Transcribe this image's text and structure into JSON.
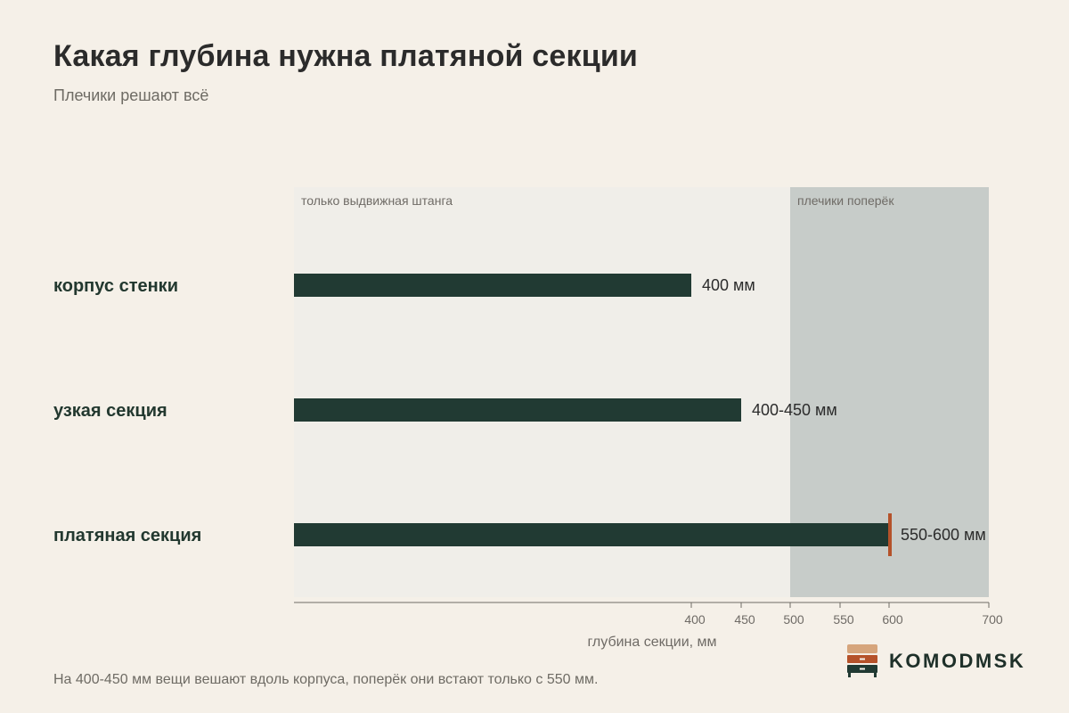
{
  "title": "Какая глубина нужна платяной секции",
  "subtitle": "Плечики решают всё",
  "footnote": "На 400-450 мм вещи вешают вдоль корпуса, поперёк они встают только с 550 мм.",
  "brand": "KOMODMSK",
  "colors": {
    "background": "#f5f0e8",
    "plot_bg": "#f0eee9",
    "zone_hanger": "#c7ccc9",
    "bar": "#213a33",
    "marker": "#b5522a",
    "axis": "#6f6b66"
  },
  "chart_data": {
    "type": "bar",
    "orientation": "horizontal",
    "categories": [
      "корпус стенки",
      "узкая секция",
      "платяная секция"
    ],
    "values": [
      400,
      450,
      600
    ],
    "value_labels": [
      "400 мм",
      "400-450 мм",
      "550-600 мм"
    ],
    "marker": {
      "category": "платяная секция",
      "value": 600
    },
    "zones": [
      {
        "label": "только выдвижная штанга",
        "from": 0,
        "to": 500
      },
      {
        "label": "плечики поперёк",
        "from": 500,
        "to": 700
      }
    ],
    "xlabel": "глубина секции, мм",
    "xlim": [
      0,
      700
    ],
    "xticks": [
      400,
      450,
      500,
      550,
      600,
      700
    ]
  }
}
